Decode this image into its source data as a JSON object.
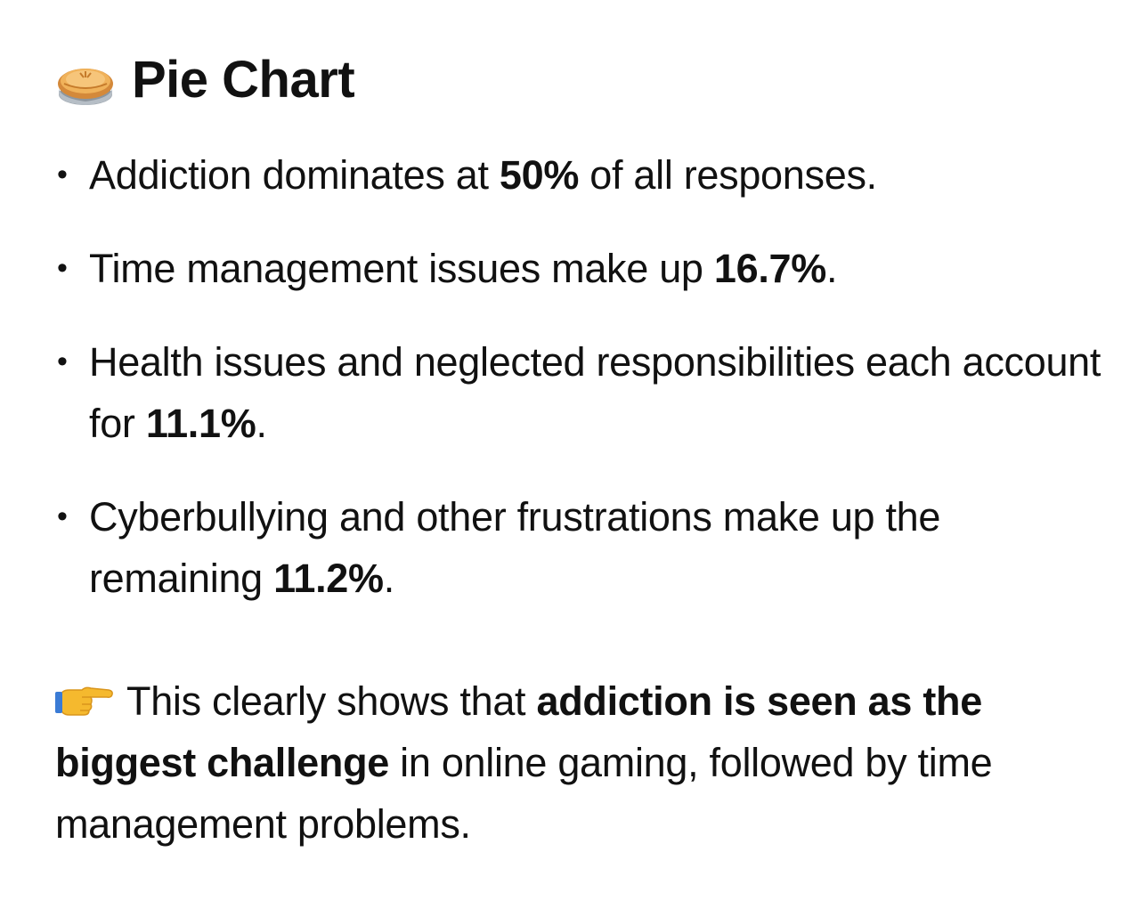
{
  "heading": {
    "icon": "pie-icon",
    "title": "Pie Chart"
  },
  "bullets": [
    {
      "pre": "Addiction dominates at ",
      "bold": "50%",
      "post": " of all responses."
    },
    {
      "pre": "Time management issues make up ",
      "bold": "16.7%",
      "post": "."
    },
    {
      "pre": "Health issues and neglected responsibilities each account for ",
      "bold": "11.1%",
      "post": "."
    },
    {
      "pre": "Cyberbullying and other frustrations make up the remaining ",
      "bold": "11.2%",
      "post": "."
    }
  ],
  "bullet_marker": "•",
  "note": {
    "icon": "pointing-hand-icon",
    "pre": "This clearly shows that ",
    "bold": "addiction is seen as the biggest challenge",
    "post": " in online gaming, followed by time management problems."
  },
  "colors": {
    "text": "#111111",
    "background": "#ffffff",
    "crust": "#e8a24a",
    "tin": "#9aa3ad",
    "hand": "#f5b92e"
  }
}
